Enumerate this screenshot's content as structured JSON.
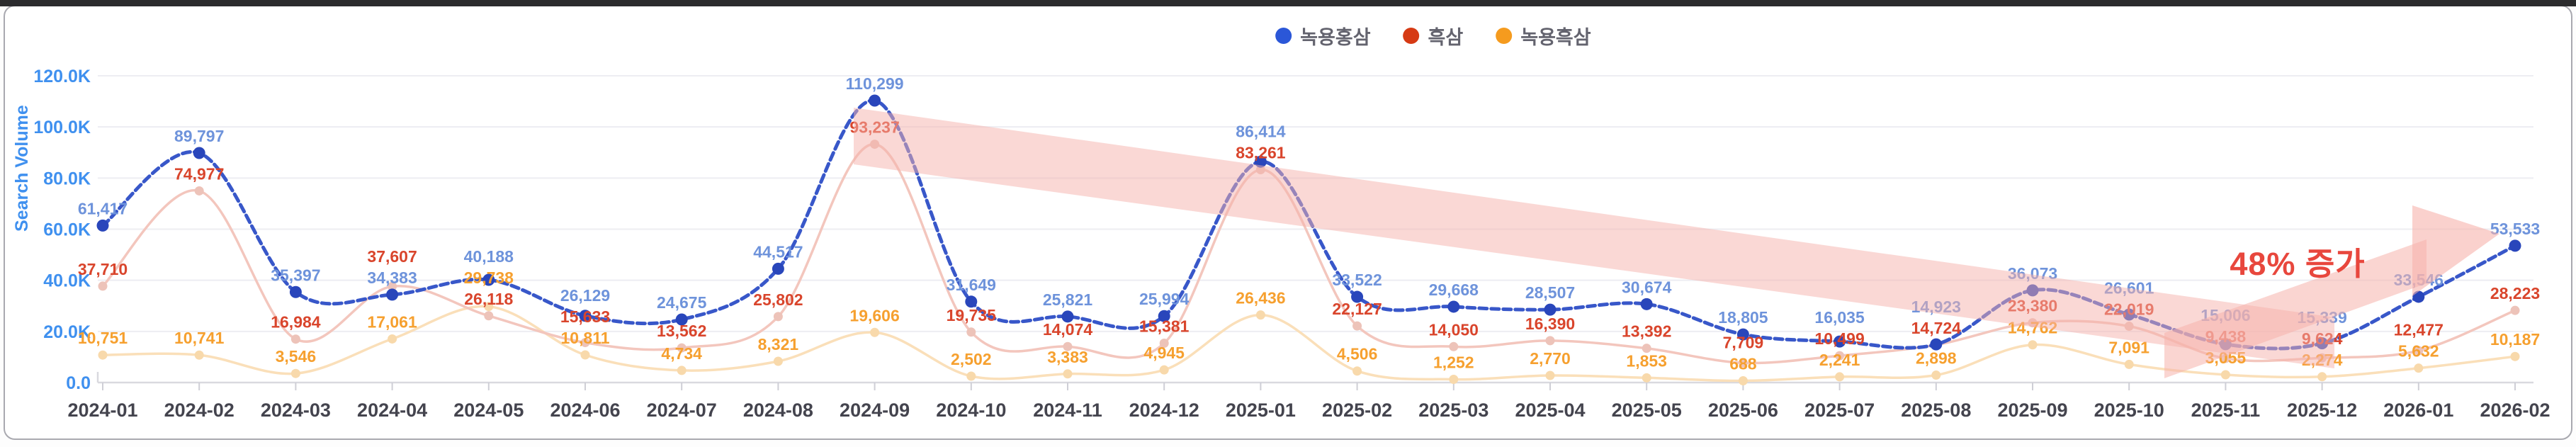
{
  "legend": {
    "items": [
      {
        "label": "녹용홍삼",
        "dot_style": "background:#2b57d8"
      },
      {
        "label": "흑삼",
        "dot_style": "background:#d63a14"
      },
      {
        "label": "녹용흑삼",
        "dot_style": "background:#f59b1e"
      }
    ]
  },
  "chart_data": {
    "type": "line",
    "title": "",
    "ylabel": "Search Volume",
    "xlabel": "",
    "grid": true,
    "legend_position": "top-center",
    "ylim": [
      0,
      120000
    ],
    "yticks": [
      "0.0",
      "20.0K",
      "40.0K",
      "60.0K",
      "80.0K",
      "100.0K",
      "120.0K"
    ],
    "x": [
      "2024-01",
      "2024-02",
      "2024-03",
      "2024-04",
      "2024-05",
      "2024-06",
      "2024-07",
      "2024-08",
      "2024-09",
      "2024-10",
      "2024-11",
      "2024-12",
      "2025-01",
      "2025-02",
      "2025-03",
      "2025-04",
      "2025-05",
      "2025-06",
      "2025-07",
      "2025-08",
      "2025-09",
      "2025-10",
      "2025-11",
      "2025-12",
      "2026-01",
      "2026-02"
    ],
    "series": [
      {
        "name": "녹용홍삼",
        "color": "#3857c9",
        "dot_color": "#2946bb",
        "label_color": "#6e93db",
        "values": [
          61417,
          89797,
          35397,
          34383,
          40188,
          26129,
          24675,
          44517,
          110299,
          31649,
          25821,
          25994,
          86414,
          33522,
          29668,
          28507,
          30674,
          18805,
          16035,
          14923,
          36073,
          26601,
          15006,
          15339,
          33546,
          53533
        ]
      },
      {
        "name": "흑삼",
        "color": "#f3c6bd",
        "dot_color": "#edc3b9",
        "label_color": "#d9452c",
        "values": [
          37710,
          74977,
          16984,
          37607,
          26118,
          15633,
          13562,
          25802,
          93237,
          19735,
          14074,
          15381,
          83261,
          22127,
          14050,
          16390,
          13392,
          7709,
          10499,
          14724,
          23380,
          22019,
          9438,
          9624,
          12477,
          28223
        ]
      },
      {
        "name": "녹용흑삼",
        "color": "#fadfb9",
        "dot_color": "#f8d9ab",
        "label_color": "#f6a02f",
        "values": [
          10751,
          10741,
          3546,
          17061,
          29738,
          10811,
          4734,
          8321,
          19606,
          2502,
          3383,
          4945,
          26436,
          4506,
          1252,
          2770,
          1853,
          688,
          2241,
          2898,
          14762,
          7091,
          3055,
          2274,
          5632,
          10187
        ]
      }
    ],
    "annotation": {
      "text": "48% 증가",
      "color": "#e8473d"
    }
  }
}
